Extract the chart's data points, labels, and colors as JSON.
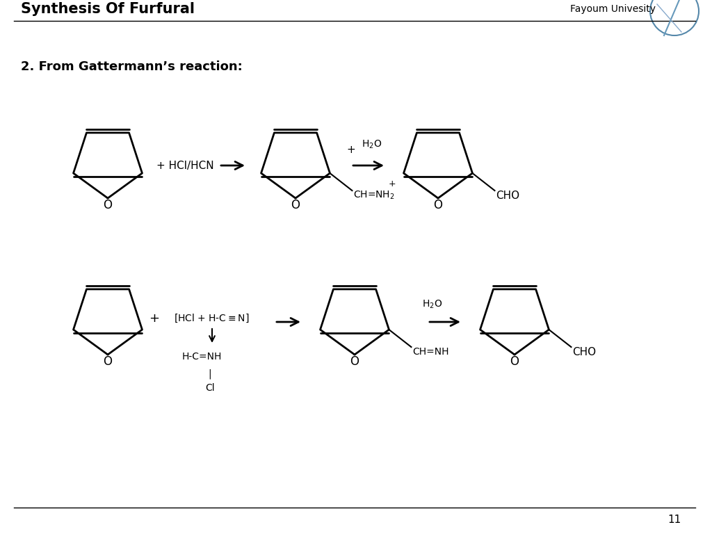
{
  "title": "Synthesis Of Furfural",
  "subtitle": "2. From Gattermann’s reaction:",
  "university": "Fayoum Univesity",
  "page_number": "11",
  "bg_color": "#ffffff",
  "line_color": "#000000",
  "title_fontsize": 15,
  "subtitle_fontsize": 13,
  "text_fontsize": 11
}
